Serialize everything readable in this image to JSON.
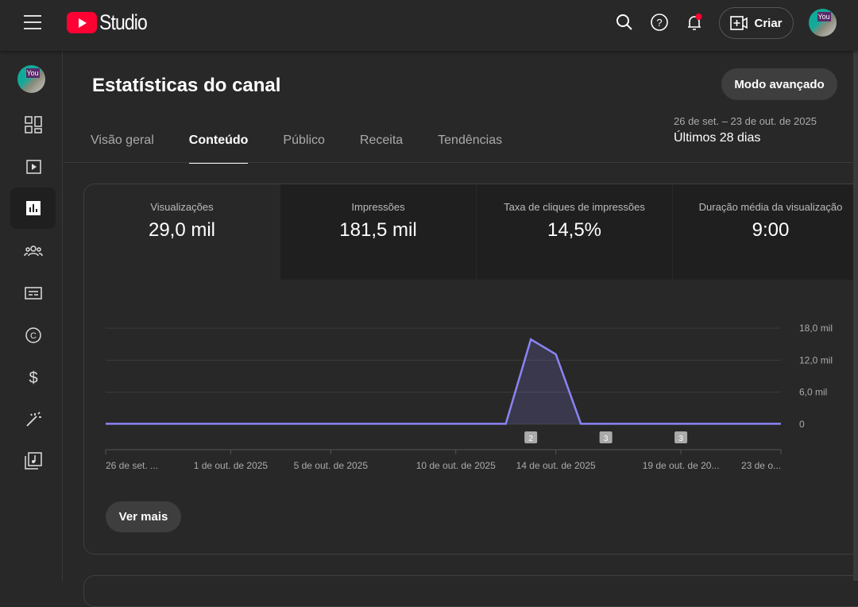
{
  "header": {
    "brand": "Studio",
    "create_label": "Criar"
  },
  "page": {
    "title": "Estatísticas do canal",
    "advanced_label": "Modo avançado",
    "tabs": [
      {
        "label": "Visão geral"
      },
      {
        "label": "Conteúdo"
      },
      {
        "label": "Público"
      },
      {
        "label": "Receita"
      },
      {
        "label": "Tendências"
      }
    ],
    "date_range": "26 de set. – 23 de out. de 2025",
    "period": "Últimos 28 dias"
  },
  "metrics": [
    {
      "label": "Visualizações",
      "value": "29,0 mil"
    },
    {
      "label": "Impressões",
      "value": "181,5 mil"
    },
    {
      "label": "Taxa de cliques de impressões",
      "value": "14,5%"
    },
    {
      "label": "Duração média da visualização",
      "value": "9:00"
    }
  ],
  "see_more": "Ver mais",
  "colors": {
    "line": "#8b84f5",
    "accent": "#ff0033"
  },
  "chart_data": {
    "type": "area",
    "title": "Visualizações",
    "ylim": [
      0,
      18000
    ],
    "yticks": [
      "0",
      "6,0 mil",
      "12,0 mil",
      "18,0 mil"
    ],
    "ytick_values": [
      0,
      6000,
      12000,
      18000
    ],
    "values": [
      100,
      100,
      100,
      100,
      100,
      100,
      100,
      100,
      100,
      100,
      100,
      100,
      100,
      100,
      100,
      100,
      100,
      15900,
      13100,
      100,
      100,
      100,
      100,
      100,
      100,
      100,
      100,
      100
    ],
    "xticks": [
      {
        "index": 0,
        "label": "26 de set. ..."
      },
      {
        "index": 5,
        "label": "1 de out. de 2025"
      },
      {
        "index": 9,
        "label": "5 de out. de 2025"
      },
      {
        "index": 14,
        "label": "10 de out. de 2025"
      },
      {
        "index": 18,
        "label": "14 de out. de 2025"
      },
      {
        "index": 23,
        "label": "19 de out. de 20..."
      },
      {
        "index": 27,
        "label": "23 de o..."
      }
    ],
    "markers": [
      {
        "index": 17,
        "label": "2"
      },
      {
        "index": 20,
        "label": "3"
      },
      {
        "index": 23,
        "label": "3"
      }
    ]
  }
}
